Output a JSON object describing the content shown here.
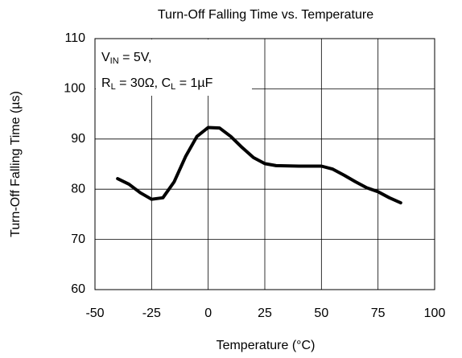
{
  "chart_data": {
    "type": "line",
    "title": "Turn-Off Falling Time vs. Temperature",
    "x_label": "Temperature (°C)",
    "y_label": "Turn-Off Falling Time (µs)",
    "annotation": [
      [
        "V",
        "IN",
        " = 5V,"
      ],
      [
        "R",
        "L",
        " = 30Ω, C",
        "L",
        " = 1µF"
      ]
    ],
    "x": [
      -40,
      -35,
      -30,
      -25,
      -20,
      -15,
      -10,
      -5,
      0,
      5,
      10,
      15,
      20,
      25,
      30,
      40,
      50,
      55,
      60,
      65,
      70,
      75,
      80,
      85
    ],
    "series": [
      {
        "color": "#000000",
        "values": [
          82.1,
          81.0,
          79.3,
          78.0,
          78.3,
          81.5,
          86.5,
          90.5,
          92.3,
          92.2,
          90.5,
          88.3,
          86.3,
          85.1,
          84.7,
          84.6,
          84.6,
          84.0,
          82.8,
          81.5,
          80.3,
          79.5,
          78.3,
          77.3
        ]
      }
    ],
    "xlim": [
      -50,
      100
    ],
    "xticks": [
      -50,
      -25,
      0,
      25,
      50,
      75,
      100
    ],
    "ylim": [
      60,
      110
    ],
    "yticks": [
      60,
      70,
      80,
      90,
      100,
      110
    ],
    "grid": true
  }
}
